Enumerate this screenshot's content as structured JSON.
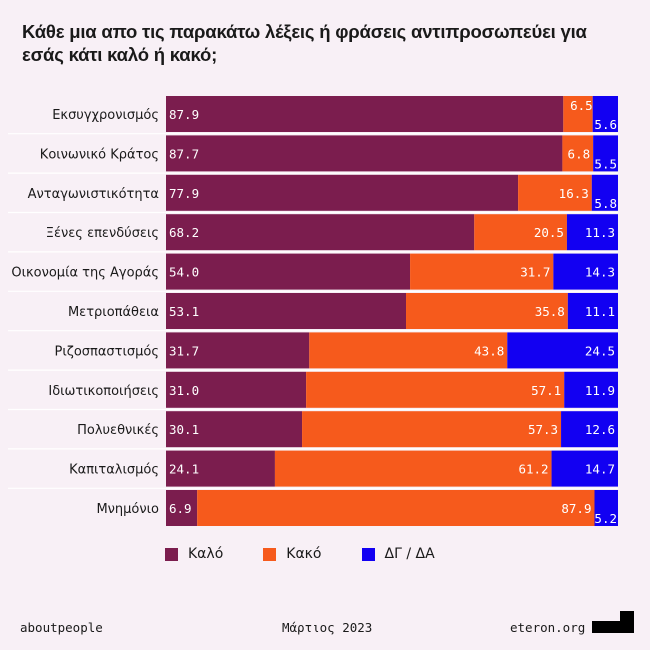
{
  "title": "Κάθε μια απο τις παρακάτω λέξεις ή φράσεις αντιπροσωπεύει για εσάς κάτι καλό ή κακό;",
  "colors": {
    "good": "#7b1d4e",
    "bad": "#f65a1c",
    "dk": "#1200f2",
    "background": "#f8f0f6",
    "label_text": "#ffffff"
  },
  "legend": [
    {
      "label": "Καλό",
      "color": "#7b1d4e"
    },
    {
      "label": "Κακό",
      "color": "#f65a1c"
    },
    {
      "label": "ΔΓ / ΔΑ",
      "color": "#1200f2"
    }
  ],
  "footer": {
    "left": "aboutpeople",
    "center": "Μάρτιος 2023",
    "right": "eteron.org"
  },
  "chart_data": {
    "type": "bar",
    "orientation": "horizontal",
    "stacked": true,
    "normalized": true,
    "categories": [
      "Εκσυγχρονισμός",
      "Κοινωνικό Κράτος",
      "Ανταγωνιστικότητα",
      "Ξένες επενδύσεις",
      "Οικονομία της Αγοράς",
      "Μετριοπάθεια",
      "Ριζοσπαστισμός",
      "Ιδιωτικοποιήσεις",
      "Πολυεθνικές",
      "Καπιταλισμός",
      "Μνημόνιο"
    ],
    "series": [
      {
        "name": "Καλό",
        "values": [
          87.9,
          87.7,
          77.9,
          68.2,
          54.0,
          53.1,
          31.7,
          31.0,
          30.1,
          24.1,
          6.9
        ]
      },
      {
        "name": "Κακό",
        "values": [
          6.5,
          6.8,
          16.3,
          20.5,
          31.7,
          35.8,
          43.8,
          57.1,
          57.3,
          61.2,
          87.9
        ]
      },
      {
        "name": "ΔΓ / ΔΑ",
        "values": [
          5.6,
          5.5,
          5.8,
          11.3,
          14.3,
          11.1,
          24.5,
          11.9,
          12.6,
          14.7,
          5.2
        ]
      }
    ],
    "value_labels": [
      [
        "87.9",
        "87.7",
        "77.9",
        "68.2",
        "54.0",
        "53.1",
        "31.7",
        "31.0",
        "30.1",
        "24.1",
        "6.9"
      ],
      [
        "6.5",
        "6.8",
        "16.3",
        "20.5",
        "31.7",
        "35.8",
        "43.8",
        "57.1",
        "57.3",
        "61.2",
        "87.9"
      ],
      [
        "5.6",
        "5.5",
        "5.8",
        "11.3",
        "14.3",
        "11.1",
        "24.5",
        "11.9",
        "12.6",
        "14.7",
        "5.2"
      ]
    ],
    "xlabel": "",
    "ylabel": "",
    "grid": false,
    "legend_position": "bottom"
  }
}
